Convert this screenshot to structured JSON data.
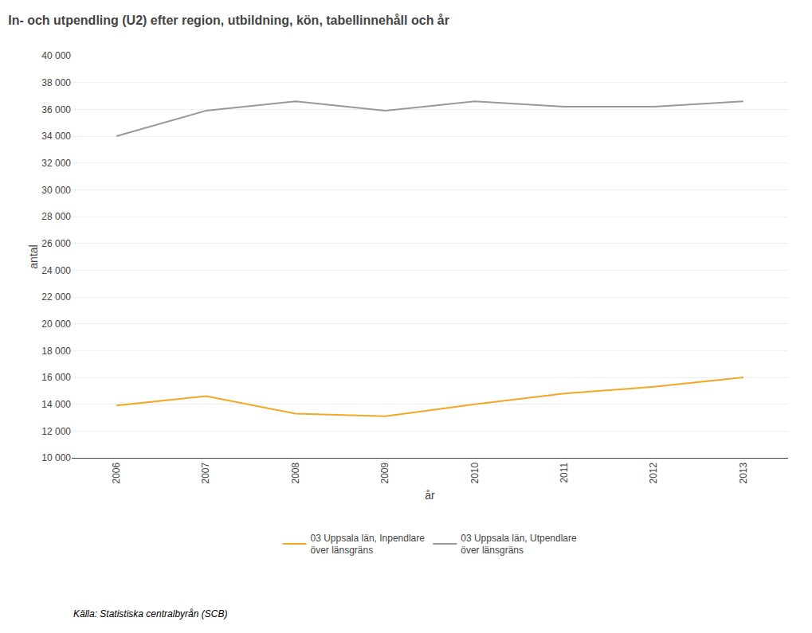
{
  "chart_data": {
    "type": "line",
    "title": "In- och utpendling (U2) efter region, utbildning, kön, tabellinnehåll och år",
    "x_label": "år",
    "y_label": "antal",
    "x": [
      2006,
      2007,
      2008,
      2009,
      2010,
      2011,
      2012,
      2013
    ],
    "series": [
      {
        "name": "03 Uppsala län, Utpendlare\növer länsgräns",
        "color": "#999999",
        "values": [
          34000,
          35900,
          36600,
          35900,
          36600,
          36200,
          36200,
          36600
        ]
      },
      {
        "name": "03 Uppsala län, Inpendlare\növer länsgräns",
        "color": "#f5a623",
        "values": [
          13900,
          14600,
          13300,
          13100,
          14000,
          14800,
          15300,
          16000
        ]
      }
    ],
    "xlim": [
      2005.5,
      2013.5
    ],
    "xticks": [
      2006,
      2007,
      2008,
      2009,
      2010,
      2011,
      2012,
      2013
    ],
    "ylim": [
      10000,
      40000
    ],
    "yticks": [
      {
        "value": 10000,
        "label": "10 000"
      },
      {
        "value": 12000,
        "label": "12 000"
      },
      {
        "value": 14000,
        "label": "14 000"
      },
      {
        "value": 16000,
        "label": "16 000"
      },
      {
        "value": 18000,
        "label": "18 000"
      },
      {
        "value": 20000,
        "label": "20 000"
      },
      {
        "value": 22000,
        "label": "22 000"
      },
      {
        "value": 24000,
        "label": "24 000"
      },
      {
        "value": 26000,
        "label": "26 000"
      },
      {
        "value": 28000,
        "label": "28 000"
      },
      {
        "value": 30000,
        "label": "30 000"
      },
      {
        "value": 32000,
        "label": "32 000"
      },
      {
        "value": 34000,
        "label": "34 000"
      },
      {
        "value": 36000,
        "label": "36 000"
      },
      {
        "value": 38000,
        "label": "38 000"
      },
      {
        "value": 40000,
        "label": "40 000"
      }
    ],
    "grid": true,
    "legend": "bottom",
    "annotations": [
      "Källa: Statistiska centralbyrån (SCB)"
    ]
  }
}
